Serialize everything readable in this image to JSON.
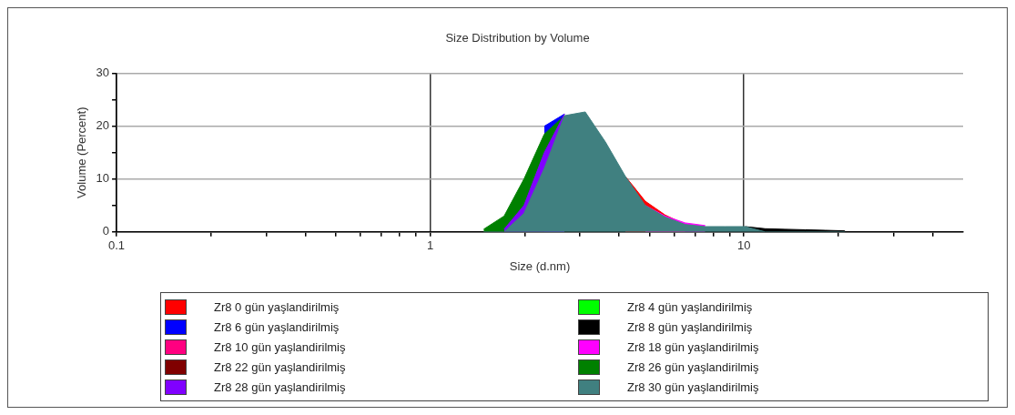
{
  "chart_data": {
    "type": "area",
    "title": "Size Distribution by Volume",
    "xlabel": "Size (d.nm)",
    "ylabel": "Volume (Percent)",
    "x": [
      1.48,
      1.72,
      1.99,
      2.31,
      2.68,
      3.12,
      3.62,
      4.19,
      4.85,
      5.61,
      6.5,
      7.53,
      8.72,
      10.1,
      11.7,
      13.5,
      15.7,
      18.2,
      21
    ],
    "xlim": [
      0.1,
      50
    ],
    "xticks": [
      0.1,
      {
        "value": 0.2,
        "label": null
      },
      {
        "value": 0.3,
        "label": null
      },
      {
        "value": 0.4,
        "label": null
      },
      {
        "value": 0.5,
        "label": null
      },
      {
        "value": 0.6,
        "label": null
      },
      {
        "value": 0.7,
        "label": null
      },
      {
        "value": 0.8,
        "label": null
      },
      {
        "value": 0.9,
        "label": null
      },
      1,
      {
        "value": 2,
        "label": null
      },
      {
        "value": 3,
        "label": null
      },
      {
        "value": 4,
        "label": null
      },
      {
        "value": 5,
        "label": null
      },
      {
        "value": 6,
        "label": null
      },
      {
        "value": 7,
        "label": null
      },
      {
        "value": 8,
        "label": null
      },
      {
        "value": 9,
        "label": null
      },
      10,
      {
        "value": 20,
        "label": null
      },
      {
        "value": 30,
        "label": null
      },
      {
        "value": 40,
        "label": null
      }
    ],
    "ylim": [
      0,
      30
    ],
    "yticks": [
      0,
      {
        "value": 5,
        "label": null
      },
      10,
      {
        "value": 15,
        "label": null
      },
      20,
      {
        "value": 25,
        "label": null
      },
      30
    ],
    "log": "x",
    "grid": true,
    "legend": "bottom",
    "marker": "none",
    "series": [
      {
        "name": "Zr8 0 gün yaşlandirilmiş",
        "color": "#ff0000",
        "values": [
          null,
          null,
          null,
          null,
          null,
          null,
          null,
          10.5,
          5.8,
          3.2,
          1.4,
          null,
          null,
          null,
          null,
          null,
          null,
          null,
          null
        ]
      },
      {
        "name": "Zr8 4 gün yaşlandirilmiş",
        "color": "#00ff00",
        "values": [
          null,
          null,
          null,
          null,
          null,
          null,
          null,
          null,
          null,
          null,
          null,
          null,
          null,
          null,
          null,
          null,
          null,
          null,
          null
        ]
      },
      {
        "name": "Zr8 6 gün yaşlandirilmiş",
        "color": "#0000ff",
        "values": [
          null,
          null,
          null,
          20,
          22.3,
          null,
          null,
          null,
          null,
          null,
          null,
          null,
          null,
          null,
          null,
          null,
          null,
          null,
          null
        ]
      },
      {
        "name": "Zr8 8 gün yaşlandirilmiş",
        "color": "#000000",
        "values": [
          null,
          null,
          null,
          null,
          null,
          null,
          null,
          null,
          null,
          null,
          null,
          null,
          null,
          1,
          0.6,
          0.5,
          0.4,
          0.3,
          0.2
        ]
      },
      {
        "name": "Zr8 10 gün yaşlandirilmiş",
        "color": "#ff0080",
        "values": [
          null,
          null,
          null,
          null,
          null,
          null,
          null,
          null,
          null,
          null,
          null,
          null,
          null,
          null,
          null,
          null,
          null,
          null,
          null
        ]
      },
      {
        "name": "Zr8 18 gün yaşlandirilmiş",
        "color": "#ff00ff",
        "values": [
          null,
          null,
          null,
          null,
          null,
          null,
          null,
          null,
          5,
          3,
          1.7,
          1.2,
          null,
          null,
          null,
          null,
          null,
          null,
          null
        ]
      },
      {
        "name": "Zr8 22 gün yaşlandirilmiş",
        "color": "#800000",
        "values": [
          null,
          null,
          null,
          null,
          null,
          null,
          null,
          null,
          null,
          null,
          null,
          null,
          null,
          null,
          null,
          null,
          null,
          null,
          null
        ]
      },
      {
        "name": "Zr8 26 gün yaşlandirilmiş",
        "color": "#008000",
        "values": [
          0.5,
          3,
          10,
          18.5,
          22,
          null,
          null,
          null,
          null,
          null,
          null,
          null,
          null,
          null,
          null,
          null,
          null,
          null,
          null
        ]
      },
      {
        "name": "Zr8 28 gün yaşlandirilmiş",
        "color": "#8000ff",
        "values": [
          null,
          0.5,
          5,
          15,
          22.3,
          null,
          null,
          null,
          null,
          null,
          null,
          null,
          null,
          null,
          null,
          null,
          null,
          null,
          null
        ]
      },
      {
        "name": "Zr8 30 gün yaşlandirilmiş",
        "color": "#408080",
        "values": [
          0,
          0,
          3.5,
          12,
          22,
          22.7,
          17,
          10.5,
          5,
          2.8,
          1.4,
          1,
          1,
          1,
          0,
          0,
          0,
          0,
          0
        ]
      }
    ]
  }
}
